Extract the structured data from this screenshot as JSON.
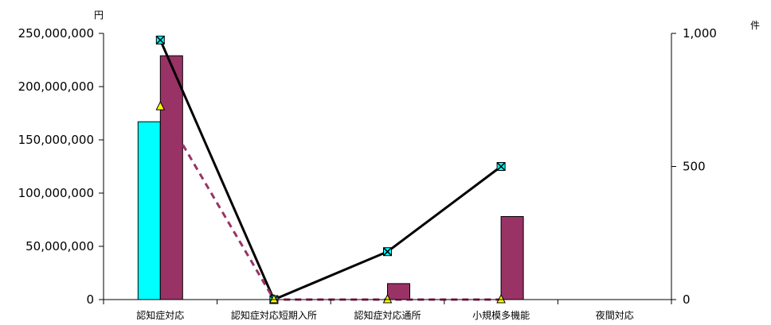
{
  "chart_data": {
    "type": "bar",
    "categories": [
      "認知症対応",
      "認知症対応短期入所",
      "認知症対応通所",
      "小規模多機能",
      "夜間対応"
    ],
    "left_axis": {
      "unit_label": "円",
      "ylim": [
        0,
        250000000
      ],
      "ticks": [
        "0",
        "50,000,000",
        "100,000,000",
        "150,000,000",
        "200,000,000",
        "250,000,000"
      ]
    },
    "right_axis": {
      "unit_label": "件",
      "ylim": [
        0,
        1000
      ],
      "ticks": [
        "0",
        "500",
        "1,000"
      ]
    },
    "bar_series": [
      {
        "color": "#00ffff",
        "axis": "left",
        "values": [
          167000000,
          0,
          0,
          0,
          0
        ]
      },
      {
        "color": "#993366",
        "axis": "left",
        "values": [
          229000000,
          0,
          15000000,
          78000000,
          0
        ]
      }
    ],
    "line_series": [
      {
        "color": "#000000",
        "style": "solid",
        "marker": "square-x",
        "marker_color": "#00ffff",
        "axis": "right",
        "values": [
          975,
          0,
          180,
          500,
          null
        ]
      },
      {
        "color": "#993366",
        "style": "dashed",
        "marker": "triangle",
        "marker_color": "#ffff00",
        "axis": "right",
        "values": [
          725,
          0,
          0,
          0,
          null
        ]
      }
    ],
    "grid": false,
    "legend": "none"
  }
}
